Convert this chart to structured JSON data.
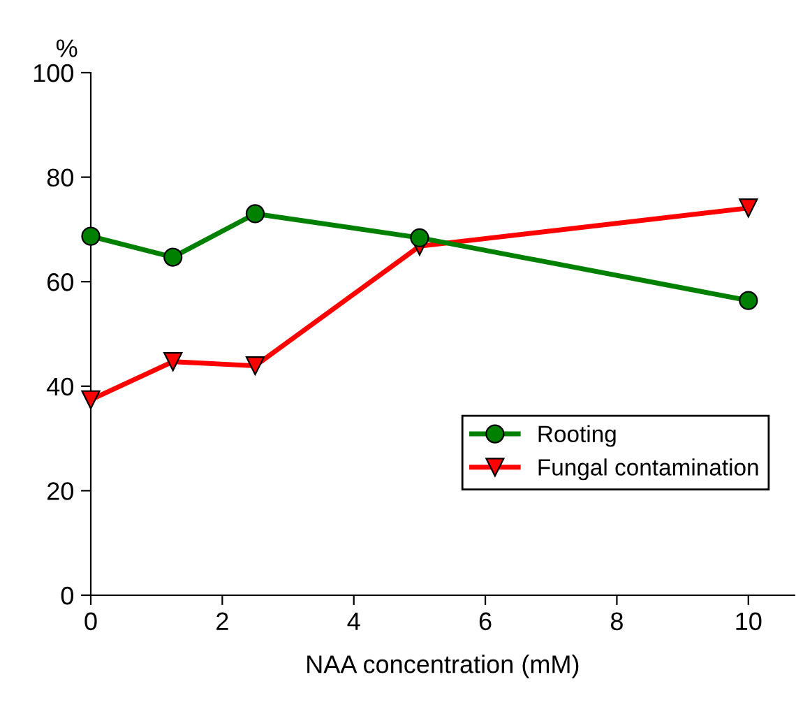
{
  "chart_data": {
    "type": "line",
    "xlabel": "NAA concentration (mM)",
    "ylabel": "%",
    "x": [
      0,
      1.25,
      2.5,
      5,
      10
    ],
    "series": [
      {
        "name": "Rooting",
        "color": "#008000",
        "values": [
          68.7,
          64.7,
          73.0,
          68.4,
          56.4
        ],
        "marker": "circle"
      },
      {
        "name": "Fungal contamination",
        "color": "#ff0000",
        "values": [
          37.4,
          44.7,
          43.9,
          66.8,
          74.1
        ],
        "marker": "triangle"
      }
    ],
    "xlim": [
      0,
      10.7
    ],
    "xticks": [
      0,
      2,
      4,
      6,
      8,
      10
    ],
    "ylim": [
      0,
      100
    ],
    "yticks": [
      0,
      20,
      40,
      60,
      80,
      100
    ],
    "grid": false,
    "legend": "bottom right",
    "line_style": "solid"
  }
}
